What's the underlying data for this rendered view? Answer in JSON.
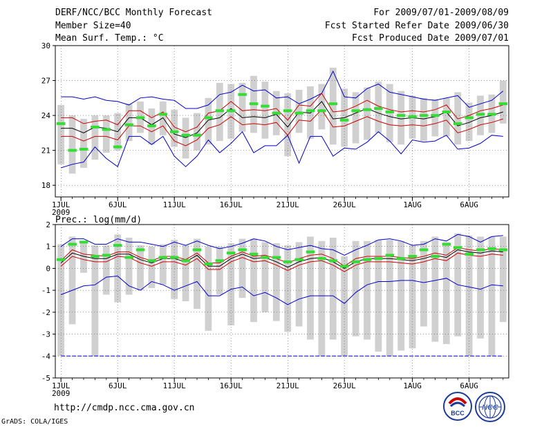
{
  "header": {
    "title": "DERF/NCC/BCC Monthly Forecast",
    "member_size": "Member Size=40",
    "variable": "Mean Surf. Temp.: °C",
    "period": "For 2009/07/01-2009/08/09",
    "refer_date": "Fcst Started Refer Date 2009/06/30",
    "produced_date": "Fcst Produced Date 2009/07/01"
  },
  "footer": {
    "url": "http://cmdp.ncc.cma.gov.cn",
    "credit": "GrADS: COLA/IGES",
    "logo_left_text": "BCC",
    "logo_right_text": "NCC"
  },
  "colors": {
    "box": "#d0d0d0",
    "mean": "#000000",
    "spread": "#cc0000",
    "extreme": "#0000cc",
    "obs": "#33dd33",
    "grid": "#555555"
  },
  "chart_data": [
    {
      "type": "line",
      "title": "Mean Surf. Temp.: °C",
      "ylim": [
        17,
        30
      ],
      "yticks": [
        18,
        21,
        24,
        27,
        30
      ],
      "xlim": [
        0.5,
        40.5
      ],
      "xticks": [
        {
          "day": 1,
          "label": "1JUL"
        },
        {
          "day": 6,
          "label": "6JUL"
        },
        {
          "day": 11,
          "label": "11JUL"
        },
        {
          "day": 16,
          "label": "16JUL"
        },
        {
          "day": 21,
          "label": "21JUL"
        },
        {
          "day": 26,
          "label": "26JUL"
        },
        {
          "day": 32,
          "label": "1AUG"
        },
        {
          "day": 37,
          "label": "6AUG"
        }
      ],
      "year_label": "2009",
      "series": [
        {
          "name": "max",
          "values": [
            25.6,
            25.6,
            25.4,
            25.6,
            25.3,
            25.2,
            24.9,
            25.5,
            25.6,
            25.4,
            25.3,
            24.6,
            24.6,
            24.9,
            25.8,
            26.0,
            26.6,
            26.1,
            26.2,
            25.5,
            25.6,
            25.0,
            25.4,
            25.9,
            27.8,
            25.6,
            25.5,
            26.3,
            26.7,
            26.0,
            25.8,
            25.6,
            25.4,
            25.3,
            25.5,
            25.7,
            24.7,
            25.0,
            25.3,
            26.1
          ]
        },
        {
          "name": "upper",
          "values": [
            23.8,
            23.8,
            23.3,
            23.5,
            23.6,
            23.2,
            24.4,
            24.4,
            23.8,
            24.3,
            23.0,
            22.6,
            23.0,
            24.2,
            24.4,
            25.2,
            24.4,
            24.5,
            24.4,
            24.6,
            23.6,
            24.9,
            24.8,
            25.9,
            24.3,
            24.4,
            24.8,
            25.3,
            24.8,
            24.5,
            24.3,
            24.4,
            24.3,
            24.5,
            24.9,
            23.7,
            24.0,
            24.4,
            24.6,
            24.9
          ]
        },
        {
          "name": "mean",
          "values": [
            22.9,
            22.9,
            22.5,
            23.0,
            22.9,
            22.6,
            23.8,
            23.8,
            23.2,
            23.8,
            22.4,
            22.1,
            22.5,
            23.6,
            23.8,
            24.6,
            23.8,
            23.9,
            23.8,
            24.1,
            23.0,
            24.3,
            24.2,
            25.2,
            23.7,
            23.8,
            24.2,
            24.6,
            24.2,
            23.9,
            23.7,
            23.8,
            23.7,
            23.9,
            24.3,
            23.1,
            23.4,
            23.8,
            24.0,
            24.3
          ]
        },
        {
          "name": "lower",
          "values": [
            22.2,
            22.2,
            21.8,
            22.2,
            22.2,
            21.9,
            23.1,
            23.1,
            22.6,
            23.1,
            21.8,
            21.4,
            21.9,
            22.9,
            23.2,
            23.9,
            23.2,
            23.3,
            23.2,
            23.4,
            22.3,
            23.6,
            23.5,
            24.5,
            23.0,
            23.1,
            23.5,
            23.9,
            23.5,
            23.2,
            23.1,
            23.2,
            23.1,
            23.3,
            23.6,
            22.5,
            22.8,
            23.2,
            23.4,
            23.7
          ]
        },
        {
          "name": "min",
          "values": [
            19.5,
            19.8,
            20.0,
            21.3,
            20.3,
            19.6,
            22.2,
            22.2,
            21.5,
            22.2,
            20.5,
            19.6,
            20.5,
            21.9,
            20.8,
            21.6,
            22.6,
            20.8,
            21.4,
            21.4,
            22.3,
            19.9,
            22.2,
            22.2,
            20.5,
            21.2,
            21.1,
            21.7,
            22.6,
            21.8,
            20.7,
            21.9,
            21.7,
            21.8,
            22.3,
            21.1,
            21.2,
            21.6,
            22.3,
            22.2
          ]
        },
        {
          "name": "box_high",
          "values": [
            24.9,
            24.0,
            23.7,
            24.0,
            24.0,
            24.2,
            25.0,
            25.2,
            24.6,
            25.2,
            24.5,
            23.8,
            24.2,
            25.5,
            26.8,
            26.7,
            26.8,
            27.4,
            26.9,
            26.1,
            25.9,
            26.2,
            26.5,
            26.7,
            28.1,
            26.3,
            26.0,
            26.4,
            26.9,
            26.7,
            26.1,
            25.7,
            25.5,
            25.4,
            25.5,
            26.0,
            25.1,
            25.7,
            25.8,
            27.0
          ]
        },
        {
          "name": "box_low",
          "values": [
            19.8,
            19.0,
            19.5,
            20.2,
            20.8,
            21.0,
            21.8,
            22.5,
            21.5,
            22.3,
            21.3,
            20.3,
            21.0,
            21.5,
            21.8,
            22.0,
            22.6,
            22.5,
            22.0,
            22.3,
            20.5,
            22.5,
            22.0,
            22.8,
            21.5,
            21.3,
            21.6,
            21.9,
            22.5,
            21.7,
            21.5,
            22.0,
            21.8,
            22.2,
            22.2,
            21.5,
            21.8,
            22.3,
            22.5,
            23.3
          ]
        },
        {
          "name": "observed",
          "values": [
            23.3,
            21.0,
            21.1,
            23.0,
            22.8,
            21.3,
            23.2,
            23.8,
            23.1,
            24.1,
            22.6,
            22.3,
            22.3,
            23.8,
            24.4,
            24.4,
            25.8,
            25.0,
            24.8,
            24.2,
            24.4,
            24.2,
            24.4,
            24.4,
            25.0,
            23.6,
            24.4,
            24.5,
            24.6,
            24.3,
            24.0,
            23.9,
            24.0,
            24.0,
            24.3,
            23.3,
            23.8,
            24.1,
            24.1,
            25.0
          ]
        }
      ]
    },
    {
      "type": "line",
      "title": "Prec.: log(mm/d)",
      "ylim": [
        -5,
        2
      ],
      "yticks": [
        -5,
        -4,
        -3,
        -2,
        -1,
        0,
        1,
        2
      ],
      "xlim": [
        0.5,
        40.5
      ],
      "xticks": [
        {
          "day": 1,
          "label": "1JUL"
        },
        {
          "day": 6,
          "label": "6JUL"
        },
        {
          "day": 11,
          "label": "11JUL"
        },
        {
          "day": 16,
          "label": "16JUL"
        },
        {
          "day": 21,
          "label": "21JUL"
        },
        {
          "day": 26,
          "label": "26JUL"
        },
        {
          "day": 32,
          "label": "1AUG"
        },
        {
          "day": 37,
          "label": "6AUG"
        }
      ],
      "year_label": "2009",
      "baseline": -4,
      "series": [
        {
          "name": "max",
          "values": [
            1.0,
            1.35,
            1.35,
            1.1,
            1.1,
            1.35,
            1.2,
            1.2,
            1.1,
            1.0,
            1.2,
            1.05,
            1.25,
            1.05,
            0.9,
            1.0,
            1.15,
            1.35,
            1.25,
            1.0,
            0.85,
            0.95,
            1.05,
            0.9,
            0.85,
            0.6,
            0.85,
            1.05,
            1.3,
            1.35,
            1.25,
            1.05,
            1.1,
            1.35,
            1.25,
            1.55,
            1.45,
            1.2,
            1.45,
            1.5
          ]
        },
        {
          "name": "upper",
          "values": [
            0.35,
            0.85,
            0.65,
            0.6,
            0.55,
            0.75,
            0.75,
            0.5,
            0.35,
            0.55,
            0.55,
            0.4,
            0.7,
            0.25,
            0.25,
            0.55,
            0.75,
            0.55,
            0.6,
            0.45,
            0.25,
            0.45,
            0.6,
            0.65,
            0.45,
            0.1,
            0.45,
            0.55,
            0.55,
            0.55,
            0.5,
            0.45,
            0.55,
            0.7,
            0.6,
            0.95,
            0.85,
            0.8,
            0.9,
            0.85
          ]
        },
        {
          "name": "mean",
          "values": [
            0.25,
            0.7,
            0.55,
            0.45,
            0.45,
            0.65,
            0.65,
            0.4,
            0.25,
            0.45,
            0.45,
            0.3,
            0.6,
            0.1,
            0.1,
            0.45,
            0.65,
            0.45,
            0.5,
            0.3,
            0.05,
            0.3,
            0.45,
            0.5,
            0.3,
            0.0,
            0.3,
            0.45,
            0.45,
            0.45,
            0.4,
            0.35,
            0.45,
            0.6,
            0.5,
            0.85,
            0.75,
            0.7,
            0.8,
            0.75
          ]
        },
        {
          "name": "lower",
          "values": [
            0.1,
            0.55,
            0.4,
            0.3,
            0.3,
            0.55,
            0.5,
            0.25,
            0.1,
            0.3,
            0.3,
            0.15,
            0.45,
            -0.05,
            -0.05,
            0.3,
            0.5,
            0.3,
            0.35,
            0.15,
            -0.1,
            0.15,
            0.3,
            0.35,
            0.15,
            -0.15,
            0.15,
            0.3,
            0.3,
            0.3,
            0.25,
            0.2,
            0.3,
            0.45,
            0.35,
            0.7,
            0.6,
            0.55,
            0.65,
            0.6
          ]
        },
        {
          "name": "min",
          "values": [
            -1.2,
            -1.0,
            -0.8,
            -0.75,
            -0.4,
            -0.35,
            -0.8,
            -1.0,
            -0.6,
            -0.75,
            -1.0,
            -0.8,
            -0.6,
            -1.25,
            -1.25,
            -0.95,
            -0.85,
            -1.25,
            -1.1,
            -1.35,
            -1.65,
            -1.4,
            -1.25,
            -1.25,
            -1.25,
            -1.6,
            -1.1,
            -0.75,
            -0.6,
            -0.6,
            -0.55,
            -0.55,
            -0.65,
            -0.55,
            -0.45,
            -0.75,
            -0.85,
            -0.95,
            -0.75,
            -0.8
          ]
        },
        {
          "name": "box_high",
          "values": [
            1.1,
            1.45,
            1.2,
            1.05,
            1.05,
            1.55,
            1.4,
            1.05,
            1.0,
            1.1,
            1.3,
            1.05,
            1.35,
            1.0,
            1.0,
            1.15,
            1.35,
            1.35,
            1.2,
            1.15,
            1.05,
            1.2,
            1.45,
            1.25,
            1.4,
            0.55,
            1.25,
            1.25,
            1.3,
            1.3,
            1.25,
            1.05,
            1.25,
            1.45,
            1.2,
            1.6,
            1.5,
            1.45,
            1.45,
            1.45
          ]
        },
        {
          "name": "box_low",
          "values": [
            -4.0,
            -2.55,
            -0.2,
            -4.0,
            -1.2,
            -1.55,
            -1.2,
            -1.0,
            -0.9,
            -0.75,
            -1.4,
            -1.5,
            -1.85,
            -2.85,
            -1.2,
            -2.6,
            -1.35,
            -2.45,
            -2.0,
            -2.4,
            -2.9,
            -2.65,
            -3.25,
            -4.0,
            -3.25,
            -4.0,
            -3.1,
            -3.25,
            -3.8,
            -4.0,
            -3.75,
            -3.65,
            -2.65,
            -3.35,
            -3.45,
            -3.1,
            -4.0,
            -3.2,
            -4.0,
            -2.45
          ]
        },
        {
          "name": "observed",
          "values": [
            0.4,
            1.1,
            1.2,
            0.55,
            0.6,
            1.05,
            0.5,
            0.85,
            0.35,
            0.5,
            0.5,
            0.35,
            0.85,
            0.2,
            0.35,
            0.7,
            0.85,
            0.65,
            0.5,
            0.5,
            0.3,
            0.4,
            0.75,
            0.45,
            0.35,
            0.1,
            0.3,
            0.4,
            0.45,
            0.6,
            0.45,
            0.55,
            0.85,
            0.55,
            1.1,
            0.95,
            0.65,
            0.85,
            0.9,
            0.85
          ]
        }
      ]
    }
  ]
}
